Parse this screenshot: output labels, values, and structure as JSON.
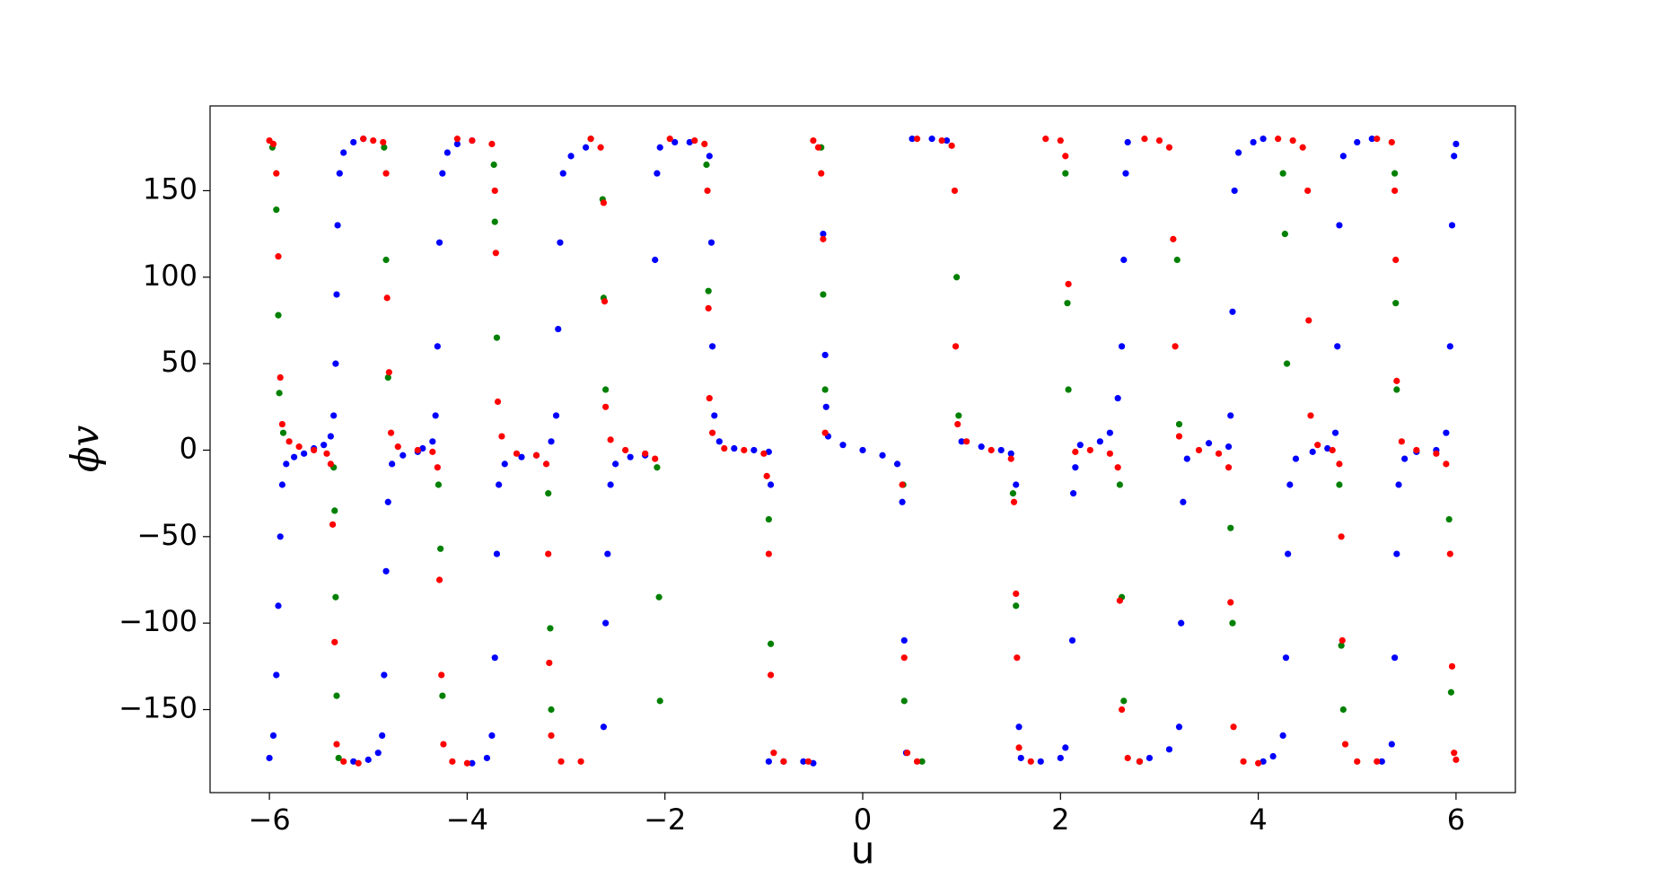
{
  "chart_data": {
    "type": "scatter",
    "x_label": "u",
    "y_label": "ϕv",
    "xlim": [
      -6.6,
      6.6
    ],
    "ylim": [
      -198,
      199
    ],
    "xticks": [
      {
        "value": -6,
        "label": "−6"
      },
      {
        "value": -4,
        "label": "−4"
      },
      {
        "value": -2,
        "label": "−2"
      },
      0,
      2,
      4,
      6
    ],
    "yticks": [
      {
        "value": -150,
        "label": "−150"
      },
      {
        "value": -100,
        "label": "−100"
      },
      {
        "value": -50,
        "label": "−50"
      },
      0,
      50,
      100,
      150
    ],
    "grid": false,
    "series": [
      {
        "color": "#0000ff",
        "x": [
          -6.0,
          -5.96,
          -5.93,
          -5.91,
          -5.89,
          -5.87,
          -5.83,
          -5.75,
          -5.65,
          -5.55,
          -5.45,
          -5.38,
          -5.35,
          -5.33,
          -5.32,
          -5.31,
          -5.29,
          -5.25,
          -5.15,
          -5.05,
          -5.15,
          -5.0,
          -4.9,
          -4.86,
          -4.84,
          -4.82,
          -4.8,
          -4.76,
          -4.65,
          -4.5,
          -4.45,
          -4.35,
          -4.32,
          -4.3,
          -4.28,
          -4.25,
          -4.2,
          -4.1,
          -3.95,
          -3.95,
          -3.8,
          -3.75,
          -3.72,
          -3.7,
          -3.68,
          -3.62,
          -3.45,
          -3.3,
          -3.15,
          -3.1,
          -3.08,
          -3.06,
          -3.03,
          -2.95,
          -2.8,
          -2.62,
          -2.6,
          -2.58,
          -2.55,
          -2.5,
          -2.35,
          -2.2,
          -2.1,
          -2.08,
          -2.05,
          -1.9,
          -1.75,
          -1.55,
          -1.53,
          -1.52,
          -1.5,
          -1.45,
          -1.3,
          -1.1,
          -0.95,
          -0.93,
          -0.95,
          -0.8,
          -0.6,
          -0.5,
          -0.4,
          -0.38,
          -0.37,
          -0.35,
          -0.2,
          0,
          0.2,
          0.35,
          0.4,
          0.42,
          0.44,
          0.5,
          0.7,
          0.85,
          1.0,
          1.2,
          1.4,
          1.5,
          1.55,
          1.58,
          1.6,
          1.8,
          2.0,
          2.05,
          2.12,
          2.13,
          2.15,
          2.2,
          2.4,
          2.5,
          2.58,
          2.62,
          2.64,
          2.66,
          2.68,
          2.8,
          2.9,
          3.1,
          3.2,
          3.22,
          3.24,
          3.28,
          3.5,
          3.7,
          3.72,
          3.74,
          3.76,
          3.8,
          3.95,
          4.05,
          4.05,
          4.15,
          4.25,
          4.28,
          4.3,
          4.32,
          4.38,
          4.55,
          4.7,
          4.78,
          4.8,
          4.82,
          4.86,
          5.0,
          5.15,
          5.25,
          5.35,
          5.38,
          5.4,
          5.42,
          5.48,
          5.6,
          5.8,
          5.9,
          5.94,
          5.96,
          5.98,
          6.0
        ],
        "y": [
          -178,
          -165,
          -130,
          -90,
          -50,
          -20,
          -8,
          -4,
          -2,
          1,
          3,
          8,
          20,
          50,
          90,
          130,
          160,
          172,
          178,
          180,
          -180,
          -179,
          -175,
          -165,
          -130,
          -70,
          -30,
          -8,
          -3,
          -1,
          1,
          5,
          20,
          60,
          120,
          160,
          172,
          177,
          179,
          -181,
          -178,
          -165,
          -120,
          -60,
          -20,
          -8,
          -4,
          -3,
          5,
          20,
          70,
          120,
          160,
          170,
          175,
          -160,
          -100,
          -60,
          -20,
          -8,
          -4,
          -3,
          110,
          160,
          175,
          178,
          178,
          170,
          120,
          60,
          20,
          5,
          1,
          0,
          -1,
          -20,
          -180,
          -180,
          -180,
          -181,
          125,
          55,
          25,
          8,
          3,
          0,
          -3,
          -8,
          -30,
          -110,
          -175,
          180,
          180,
          179,
          5,
          2,
          0,
          -2,
          -20,
          -160,
          -178,
          -180,
          -178,
          -172,
          -110,
          -25,
          -10,
          3,
          5,
          10,
          30,
          60,
          110,
          160,
          178,
          -180,
          -178,
          -173,
          -160,
          -100,
          -30,
          -5,
          4,
          2,
          20,
          80,
          150,
          172,
          178,
          180,
          -180,
          -177,
          -165,
          -120,
          -60,
          -20,
          -5,
          -1,
          1,
          10,
          60,
          130,
          170,
          178,
          180,
          -180,
          -170,
          -120,
          -60,
          -20,
          -5,
          -1,
          0,
          10,
          60,
          130,
          170,
          177
        ]
      },
      {
        "color": "#008000",
        "x": [
          -5.97,
          -5.93,
          -5.91,
          -5.9,
          -5.86,
          -5.35,
          -5.34,
          -5.33,
          -5.32,
          -5.3,
          -4.84,
          -4.82,
          -4.8,
          -4.29,
          -4.27,
          -4.25,
          -3.73,
          -3.72,
          -3.7,
          -3.18,
          -3.16,
          -3.15,
          -2.75,
          -2.63,
          -2.62,
          -2.6,
          -2.08,
          -2.06,
          -2.05,
          -1.58,
          -1.56,
          -0.95,
          -0.93,
          -0.42,
          -0.4,
          -0.38,
          0.41,
          0.42,
          0.6,
          0.95,
          0.97,
          1.52,
          1.55,
          2.05,
          2.07,
          2.08,
          2.6,
          2.62,
          2.64,
          2.8,
          3.18,
          3.2,
          3.72,
          3.74,
          4.25,
          4.27,
          4.29,
          4.82,
          4.84,
          4.86,
          5.38,
          5.39,
          5.4,
          5.93,
          5.95
        ],
        "y": [
          175,
          139,
          78,
          33,
          10,
          -10,
          -35,
          -85,
          -142,
          -178,
          175,
          110,
          42,
          -20,
          -57,
          -142,
          165,
          132,
          65,
          -25,
          -103,
          -150,
          180,
          145,
          88,
          35,
          -10,
          -85,
          -145,
          165,
          92,
          -40,
          -112,
          175,
          90,
          35,
          -20,
          -145,
          -180,
          100,
          20,
          -25,
          -90,
          160,
          85,
          35,
          -20,
          -85,
          -145,
          -180,
          110,
          15,
          -45,
          -100,
          160,
          125,
          50,
          -20,
          -113,
          -150,
          160,
          85,
          35,
          -40,
          -140
        ]
      },
      {
        "color": "#ff0000",
        "x": [
          -6.0,
          -5.96,
          -5.93,
          -5.91,
          -5.89,
          -5.87,
          -5.8,
          -5.7,
          -5.55,
          -5.42,
          -5.38,
          -5.36,
          -5.34,
          -5.32,
          -5.25,
          -5.1,
          -5.05,
          -4.95,
          -4.85,
          -4.82,
          -4.81,
          -4.79,
          -4.77,
          -4.7,
          -4.5,
          -4.35,
          -4.3,
          -4.28,
          -4.26,
          -4.24,
          -4.15,
          -4.0,
          -4.1,
          -3.95,
          -3.75,
          -3.72,
          -3.71,
          -3.69,
          -3.65,
          -3.5,
          -3.3,
          -3.2,
          -3.18,
          -3.17,
          -3.15,
          -3.05,
          -2.85,
          -2.75,
          -2.65,
          -2.62,
          -2.61,
          -2.6,
          -2.55,
          -2.4,
          -2.2,
          -2.1,
          -1.95,
          -1.7,
          -1.6,
          -1.57,
          -1.56,
          -1.55,
          -1.52,
          -1.4,
          -1.2,
          -1.0,
          -0.97,
          -0.95,
          -0.93,
          -0.9,
          -0.8,
          -0.55,
          -0.5,
          -0.45,
          -0.42,
          -0.4,
          -0.38,
          0.4,
          0.42,
          0.45,
          0.55,
          0.55,
          0.8,
          0.9,
          0.93,
          0.94,
          0.96,
          1.05,
          1.3,
          1.5,
          1.53,
          1.55,
          1.56,
          1.58,
          1.7,
          1.85,
          2.0,
          2.05,
          2.08,
          2.15,
          2.3,
          2.5,
          2.58,
          2.6,
          2.62,
          2.68,
          2.8,
          2.85,
          3.0,
          3.1,
          3.14,
          3.16,
          3.2,
          3.4,
          3.6,
          3.7,
          3.72,
          3.75,
          3.85,
          4.0,
          4.2,
          4.35,
          4.45,
          4.5,
          4.51,
          4.53,
          4.6,
          4.75,
          4.82,
          4.84,
          4.85,
          4.88,
          5.0,
          5.2,
          5.2,
          5.35,
          5.38,
          5.39,
          5.4,
          5.45,
          5.6,
          5.8,
          5.9,
          5.94,
          5.96,
          5.98,
          6.0
        ],
        "y": [
          179,
          177,
          160,
          112,
          42,
          15,
          5,
          2,
          0,
          -2,
          -8,
          -43,
          -111,
          -170,
          -180,
          -181,
          180,
          179,
          178,
          160,
          88,
          45,
          10,
          2,
          0,
          -1,
          -10,
          -75,
          -130,
          -170,
          -180,
          -181,
          180,
          179,
          177,
          150,
          114,
          28,
          8,
          -2,
          -3,
          -8,
          -60,
          -123,
          -165,
          -180,
          -180,
          180,
          175,
          143,
          86,
          25,
          6,
          0,
          -2,
          -5,
          180,
          179,
          177,
          150,
          82,
          30,
          10,
          1,
          0,
          -2,
          -15,
          -60,
          -130,
          -175,
          -180,
          -180,
          179,
          175,
          160,
          122,
          10,
          -20,
          -120,
          -175,
          -180,
          180,
          179,
          176,
          150,
          60,
          15,
          5,
          0,
          -5,
          -30,
          -83,
          -120,
          -172,
          -180,
          180,
          179,
          170,
          96,
          -1,
          0,
          -2,
          -10,
          -87,
          -150,
          -178,
          -180,
          180,
          179,
          175,
          122,
          60,
          8,
          0,
          -2,
          -10,
          -88,
          -160,
          -180,
          -181,
          180,
          179,
          175,
          150,
          75,
          20,
          3,
          0,
          -8,
          -50,
          -110,
          -170,
          -180,
          -180,
          180,
          178,
          150,
          110,
          40,
          5,
          0,
          -2,
          -8,
          -60,
          -125,
          -175,
          -179
        ]
      }
    ]
  }
}
